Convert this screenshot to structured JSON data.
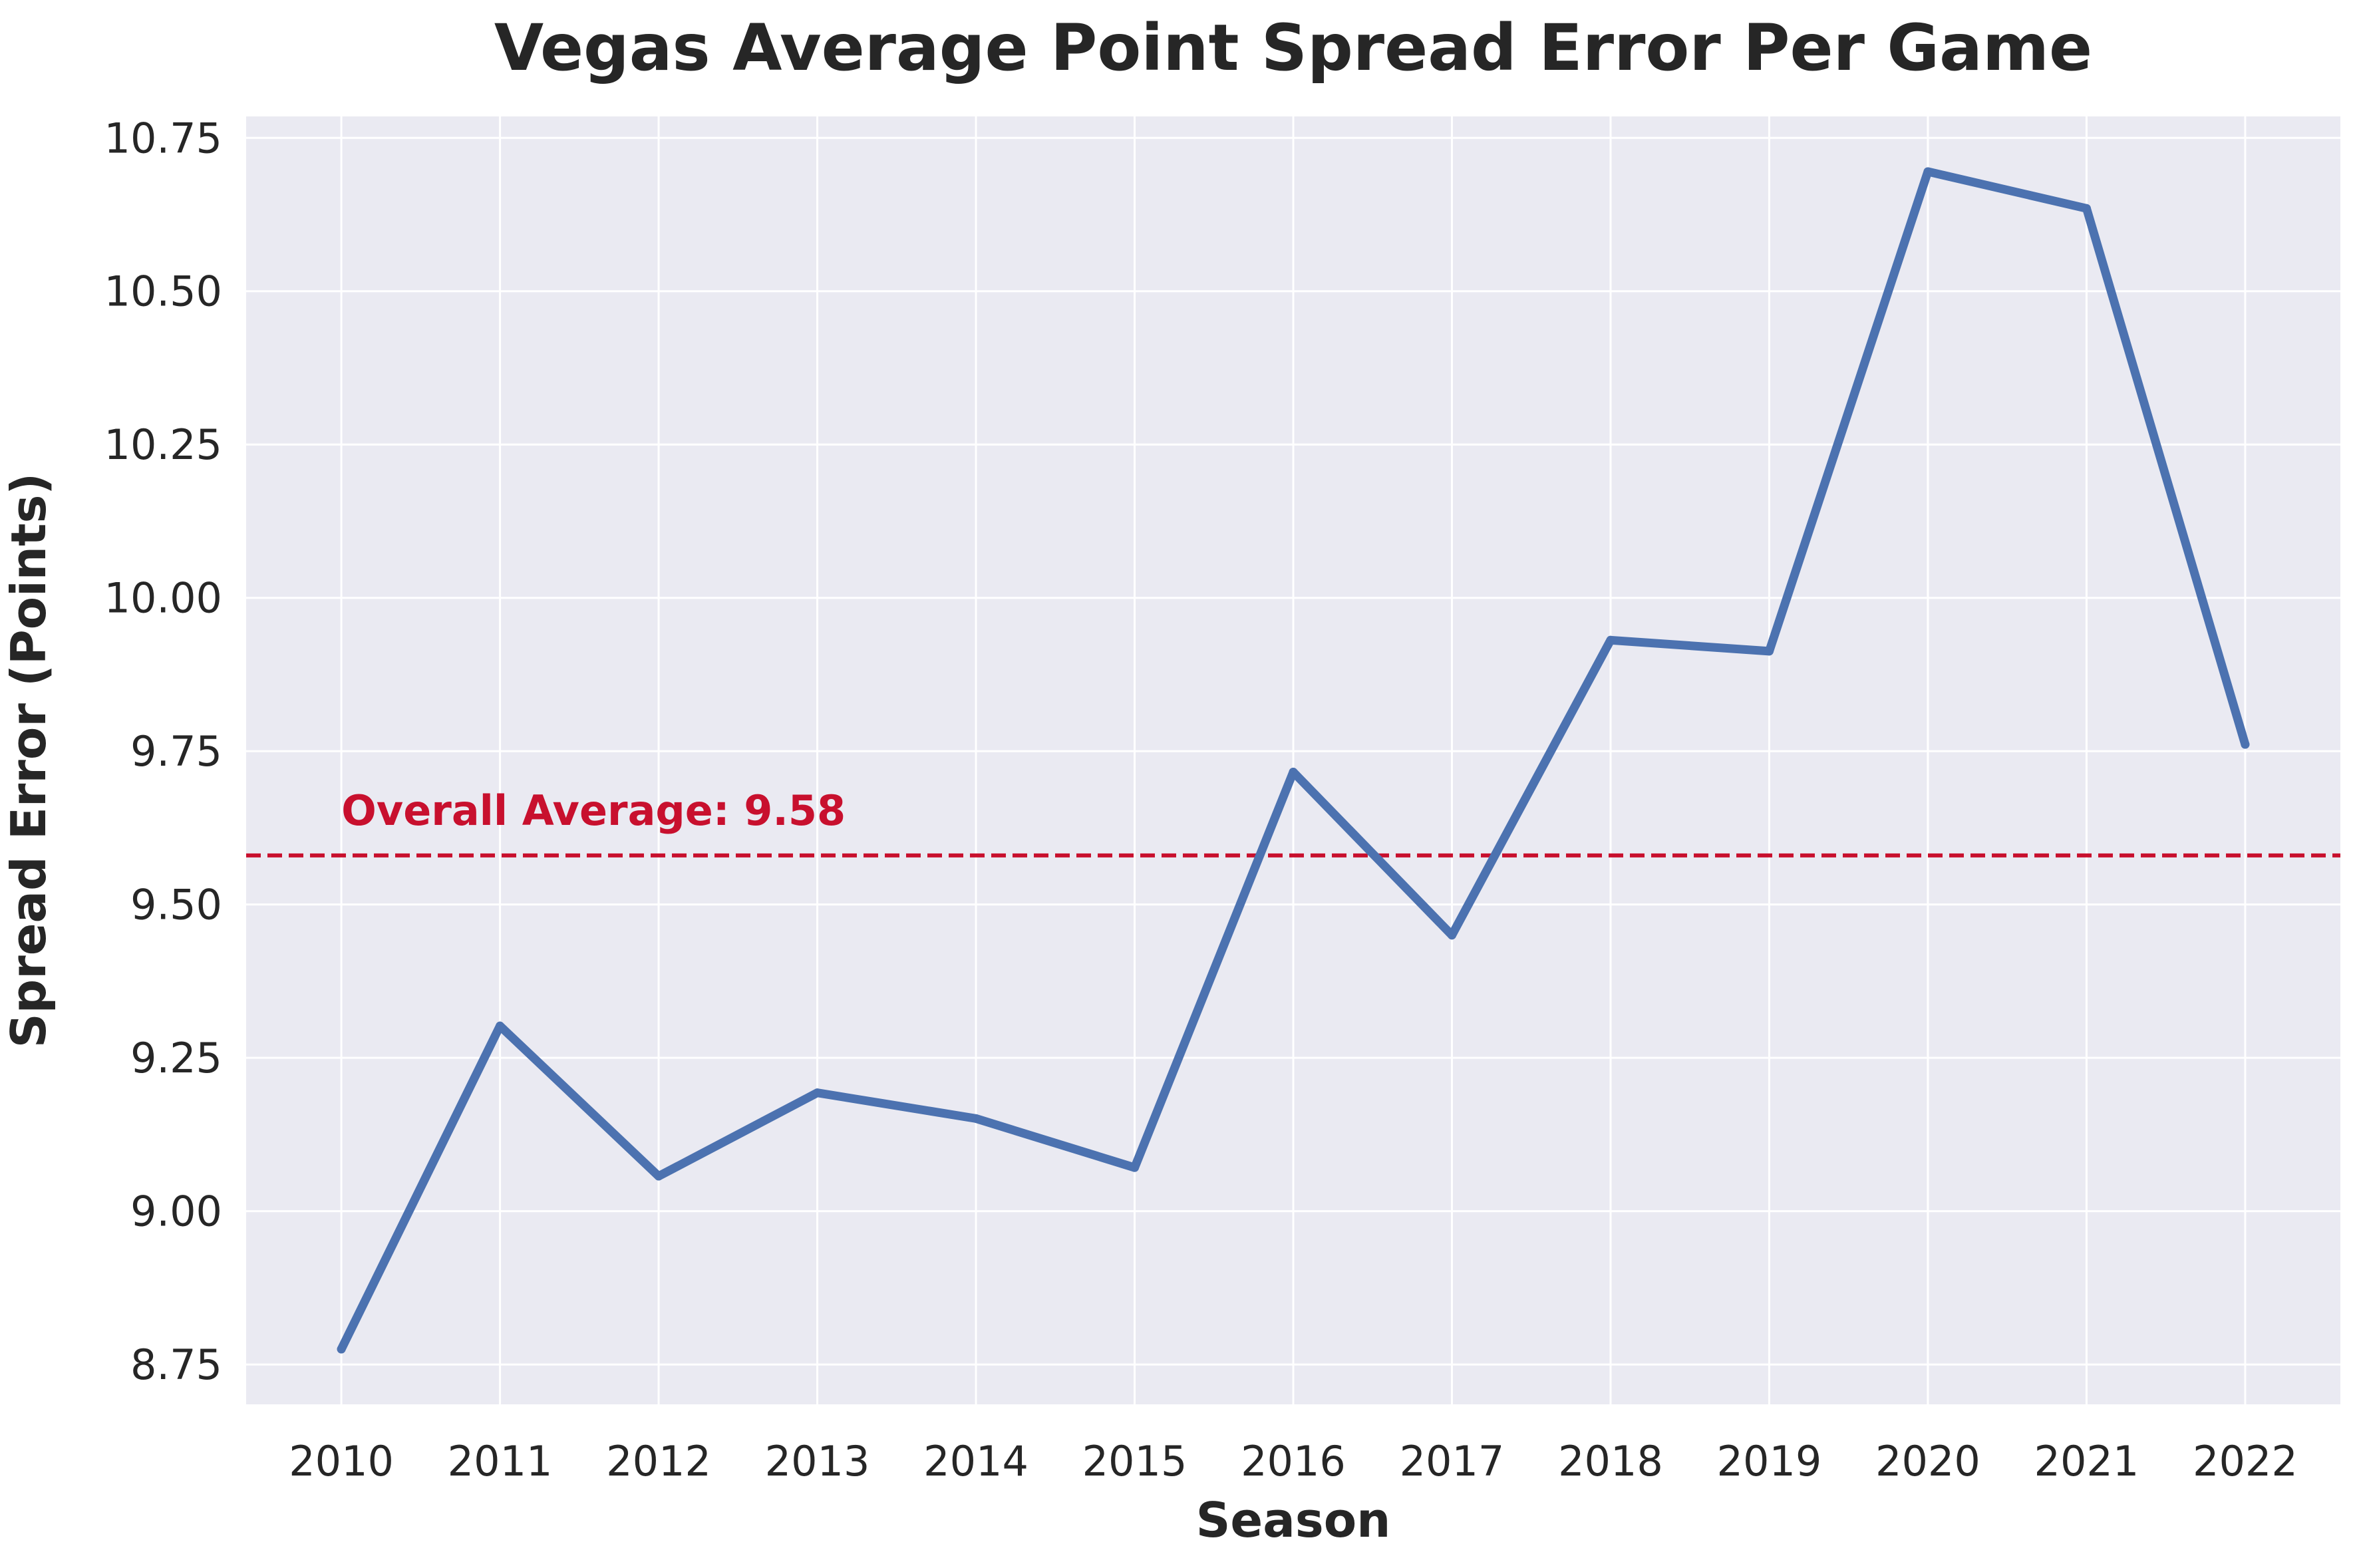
{
  "chart_data": {
    "type": "line",
    "title": "Vegas Average Point Spread Error Per Game",
    "xlabel": "Season",
    "ylabel": "Spread Error (Points)",
    "x": [
      2010,
      2011,
      2012,
      2013,
      2014,
      2015,
      2016,
      2017,
      2018,
      2019,
      2020,
      2021,
      2022
    ],
    "series": [
      {
        "values": [
          8.775,
          9.302,
          9.057,
          9.193,
          9.151,
          9.071,
          9.716,
          9.45,
          9.931,
          9.913,
          10.695,
          10.635,
          9.761
        ],
        "color": "#4c72b0"
      }
    ],
    "xlim": [
      2009.4,
      2022.6
    ],
    "ylim": [
      8.685,
      10.785
    ],
    "yticks": [
      8.75,
      9.0,
      9.25,
      9.5,
      9.75,
      10.0,
      10.25,
      10.5,
      10.75
    ],
    "yticks_labels": [
      "8.75",
      "9.00",
      "9.25",
      "9.50",
      "9.75",
      "10.00",
      "10.25",
      "10.50",
      "10.75"
    ],
    "xticks_labels": [
      "2010",
      "2011",
      "2012",
      "2013",
      "2014",
      "2015",
      "2016",
      "2017",
      "2018",
      "2019",
      "2020",
      "2021",
      "2022"
    ],
    "reference_line": {
      "value": 9.58,
      "style": "dashed",
      "color": "#c8102e",
      "label": "Overall Average: 9.58"
    },
    "grid": true,
    "background": "#eaeaf2",
    "grid_color": "#ffffff"
  }
}
